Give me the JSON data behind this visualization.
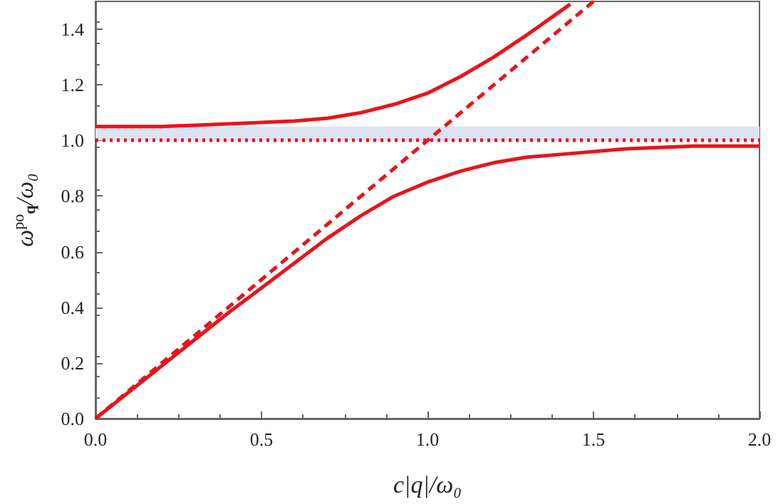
{
  "chart_data": {
    "type": "line",
    "xlabel": "c|q|/ω₀",
    "ylabel": "ω$^{po}$$_{q}$/ω₀",
    "xlim": [
      0,
      2
    ],
    "xticks": [
      {
        "value": 0,
        "label": "0.0"
      },
      {
        "value": 0.5,
        "label": "0.5"
      },
      {
        "value": 1,
        "label": "1.0"
      },
      {
        "value": 1.5,
        "label": "1.5"
      },
      {
        "value": 2,
        "label": "2.0"
      }
    ],
    "ylim": [
      0,
      1.5
    ],
    "yticks": [
      {
        "value": 0,
        "label": "0.0"
      },
      {
        "value": 0.2,
        "label": "0.2"
      },
      {
        "value": 0.4,
        "label": "0.4"
      },
      {
        "value": 0.6,
        "label": "0.6"
      },
      {
        "value": 0.8,
        "label": "0.8"
      },
      {
        "value": 1,
        "label": "1.0"
      },
      {
        "value": 1.2,
        "label": "1.2"
      },
      {
        "value": 1.4,
        "label": "1.4"
      }
    ],
    "marker": "none",
    "series": [
      {
        "color": "#e8141a",
        "line_style": "solid",
        "x": [
          0,
          0.2,
          0.4,
          0.6,
          0.7,
          0.8,
          0.9,
          1.0,
          1.1,
          1.2,
          1.3,
          1.43
        ],
        "values": [
          1.05,
          1.05,
          1.06,
          1.07,
          1.08,
          1.1,
          1.13,
          1.17,
          1.23,
          1.3,
          1.38,
          1.49
        ]
      },
      {
        "color": "#e8141a",
        "line_style": "solid",
        "x": [
          0,
          0.2,
          0.4,
          0.5,
          0.6,
          0.7,
          0.8,
          0.9,
          1.0,
          1.1,
          1.2,
          1.3,
          1.4,
          1.6,
          1.8,
          2.0
        ],
        "values": [
          0,
          0.19,
          0.38,
          0.47,
          0.56,
          0.65,
          0.73,
          0.8,
          0.85,
          0.89,
          0.92,
          0.94,
          0.95,
          0.97,
          0.98,
          0.98
        ]
      },
      {
        "color": "#e8141a",
        "line_style": "dashed",
        "x": [
          0,
          1.5
        ],
        "values": [
          0,
          1.5
        ]
      }
    ],
    "ref_lines": [
      {
        "axis": "y",
        "value": 1,
        "color": "#e8141a",
        "line_style": "dotted"
      }
    ],
    "bands": [
      {
        "axis": "y",
        "from": 1,
        "to": 1.05,
        "color": "#dde3f0"
      }
    ]
  }
}
